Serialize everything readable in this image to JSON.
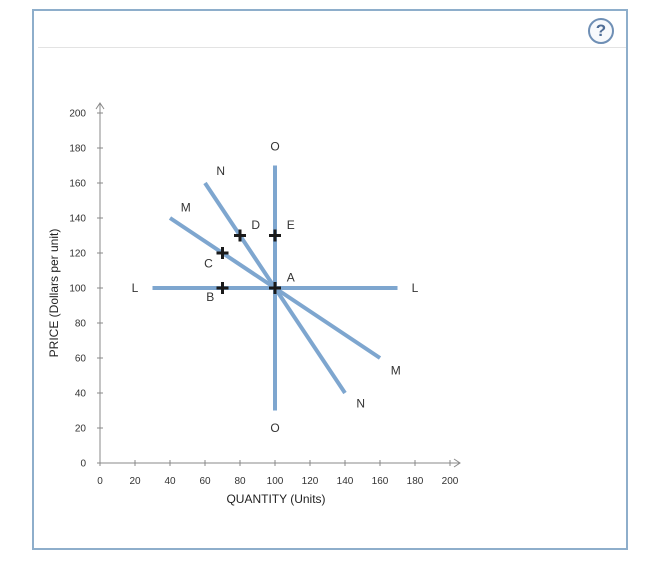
{
  "help": {
    "label": "?"
  },
  "chart_data": {
    "type": "line",
    "xlabel": "QUANTITY (Units)",
    "ylabel": "PRICE (Dollars per unit)",
    "xlim": [
      0,
      200
    ],
    "ylim": [
      0,
      200
    ],
    "xticks": [
      0,
      20,
      40,
      60,
      80,
      100,
      120,
      140,
      160,
      180,
      200
    ],
    "yticks": [
      0,
      20,
      40,
      60,
      80,
      100,
      120,
      140,
      160,
      180,
      200
    ],
    "grid": false,
    "line_color": "#7ea6cf",
    "series": [
      {
        "name": "L",
        "x": [
          30,
          170
        ],
        "y": [
          100,
          100
        ],
        "labels": [
          {
            "text": "L",
            "x": 20,
            "y": 100
          },
          {
            "text": "L",
            "x": 180,
            "y": 100
          }
        ]
      },
      {
        "name": "M",
        "x": [
          40,
          160
        ],
        "y": [
          140,
          60
        ],
        "labels": [
          {
            "text": "M",
            "x": 49,
            "y": 146
          },
          {
            "text": "M",
            "x": 169,
            "y": 53
          }
        ]
      },
      {
        "name": "N",
        "x": [
          60,
          140
        ],
        "y": [
          160,
          40
        ],
        "labels": [
          {
            "text": "N",
            "x": 69,
            "y": 167
          },
          {
            "text": "N",
            "x": 149,
            "y": 34
          }
        ]
      },
      {
        "name": "O",
        "x": [
          100,
          100
        ],
        "y": [
          170,
          30
        ],
        "labels": [
          {
            "text": "O",
            "x": 100,
            "y": 181
          },
          {
            "text": "O",
            "x": 100,
            "y": 20
          }
        ]
      }
    ],
    "points": [
      {
        "label": "A",
        "x": 100,
        "y": 100,
        "label_x": 109,
        "label_y": 106
      },
      {
        "label": "B",
        "x": 70,
        "y": 100,
        "label_x": 63,
        "label_y": 95
      },
      {
        "label": "C",
        "x": 70,
        "y": 120,
        "label_x": 62,
        "label_y": 114
      },
      {
        "label": "D",
        "x": 80,
        "y": 130,
        "label_x": 89,
        "label_y": 136
      },
      {
        "label": "E",
        "x": 100,
        "y": 130,
        "label_x": 109,
        "label_y": 136
      }
    ]
  }
}
